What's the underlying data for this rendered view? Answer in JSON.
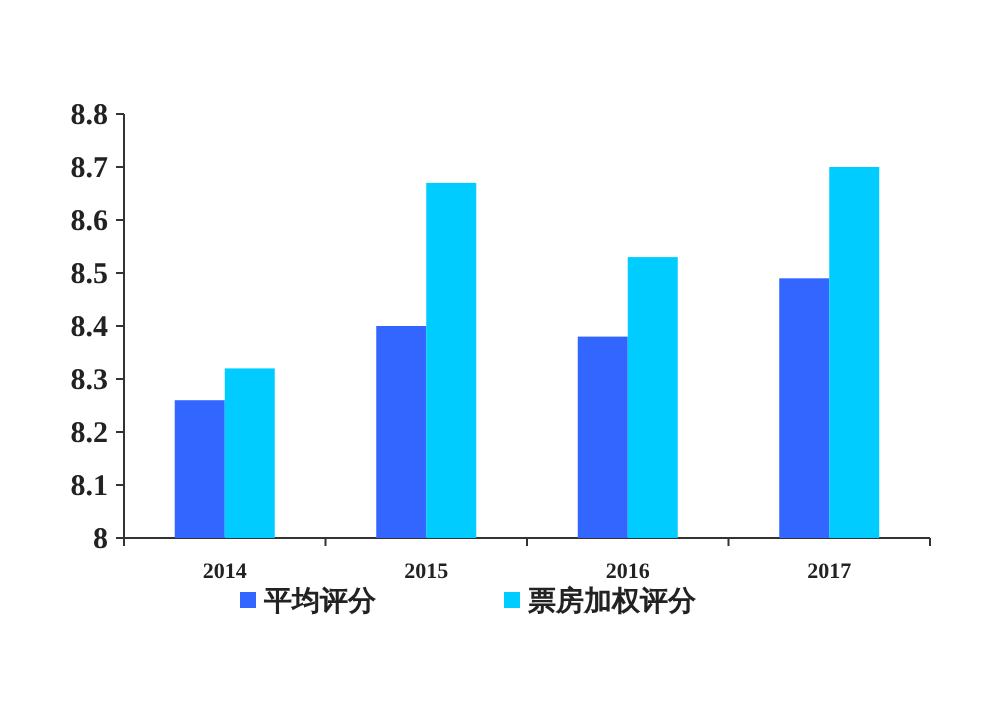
{
  "chart_data": {
    "type": "bar",
    "categories": [
      "2014",
      "2015",
      "2016",
      "2017"
    ],
    "series": [
      {
        "name": "平均评分",
        "color": "#3366ff",
        "values": [
          8.26,
          8.4,
          8.38,
          8.49
        ]
      },
      {
        "name": "票房加权评分",
        "color": "#00ccff",
        "values": [
          8.32,
          8.67,
          8.53,
          8.7
        ]
      }
    ],
    "ylim": [
      8,
      8.8
    ],
    "yticks": [
      {
        "value": 8,
        "label": "8"
      },
      8.1,
      8.2,
      8.3,
      8.4,
      8.5,
      8.6,
      8.7,
      8.8
    ],
    "grid": false,
    "legend": "bottom"
  }
}
